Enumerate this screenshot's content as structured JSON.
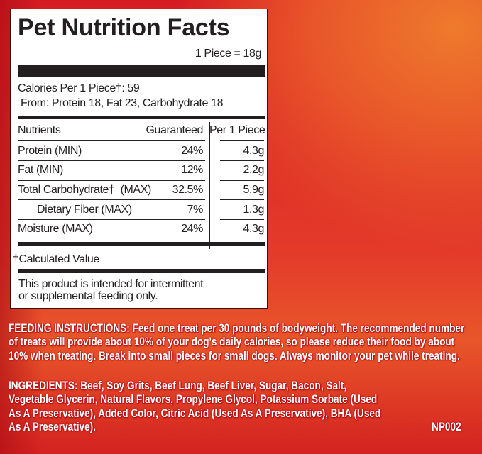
{
  "panel": {
    "title": "Pet Nutrition Facts",
    "serving": "1 Piece = 18g",
    "calories": "Calories Per 1 Piece†: 59",
    "calories_from": "From: Protein 18, Fat 23, Carbohydrate 18",
    "headers": {
      "nutrients": "Nutrients",
      "guaranteed": "Guaranteed",
      "per_piece": "Per 1 Piece"
    },
    "rows": [
      {
        "name": "Protein (MIN)",
        "guaranteed": "24%",
        "per_piece": "4.3g"
      },
      {
        "name": "Fat (MIN)",
        "guaranteed": "12%",
        "per_piece": "2.2g"
      },
      {
        "name": "Total Carbohydrate†  (MAX)",
        "guaranteed": "32.5%",
        "per_piece": "5.9g"
      },
      {
        "name": "Dietary Fiber (MAX)",
        "guaranteed": "7%",
        "per_piece": "1.3g"
      },
      {
        "name": "Moisture (MAX)",
        "guaranteed": "24%",
        "per_piece": "4.3g"
      }
    ],
    "footnote": "†Calculated Value",
    "statement_lines": [
      "This product is intended for intermittent",
      "or supplemental feeding only."
    ]
  },
  "feeding_lines": [
    "FEEDING INSTRUCTIONS: Feed one treat per 30 pounds of bodyweight. The recommended number",
    "of treats will provide about 10% of your dog's daily calories, so please reduce their food by about",
    "10% when treating. Break into small pieces for small dogs. Always monitor your pet while treating."
  ],
  "ingredient_lines": [
    "INGREDIENTS: Beef, Soy Grits, Beef Lung, Beef Liver, Sugar, Bacon, Salt,",
    "Vegetable Glycerin, Natural Flavors, Propylene Glycol, Potassium Sorbate (Used",
    "As A Preservative), Added Color, Citric Acid (Used As A Preservative), BHA (Used",
    "As A Preservative)."
  ],
  "code": "NP002"
}
